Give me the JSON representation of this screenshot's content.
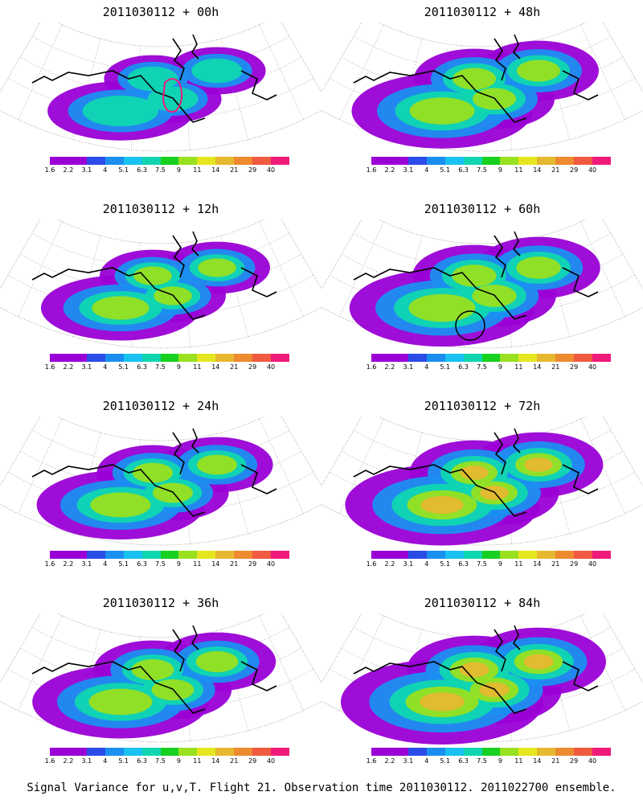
{
  "panels": [
    {
      "title": "2011030112 + 00h",
      "intensity": 0.35,
      "highlight": "red-contour"
    },
    {
      "title": "2011030112 + 12h",
      "intensity": 0.5,
      "highlight": "none"
    },
    {
      "title": "2011030112 + 24h",
      "intensity": 0.6,
      "highlight": "none"
    },
    {
      "title": "2011030112 + 36h",
      "intensity": 0.7,
      "highlight": "none"
    },
    {
      "title": "2011030112 + 48h",
      "intensity": 0.75,
      "highlight": "none"
    },
    {
      "title": "2011030112 + 60h",
      "intensity": 0.8,
      "highlight": "black-circle"
    },
    {
      "title": "2011030112 + 72h",
      "intensity": 0.9,
      "highlight": "none"
    },
    {
      "title": "2011030112 + 84h",
      "intensity": 1.0,
      "highlight": "none"
    }
  ],
  "colorbar": {
    "colors": [
      "#9a00d6",
      "#9a00d6",
      "#2c4ce8",
      "#1b8ff0",
      "#19c2f0",
      "#10d6b0",
      "#18d020",
      "#98e020",
      "#e6e620",
      "#e6b830",
      "#ee8a30",
      "#f05a40",
      "#f01a7a"
    ],
    "ticks": [
      "1.6",
      "2.2",
      "3.1",
      "4",
      "5.1",
      "6.3",
      "7.5",
      "9",
      "11",
      "14",
      "21",
      "29",
      "40"
    ]
  },
  "footer": "Signal Variance for u,v,T. Flight 21. Observation time 2011030112. 2011022700 ensemble."
}
